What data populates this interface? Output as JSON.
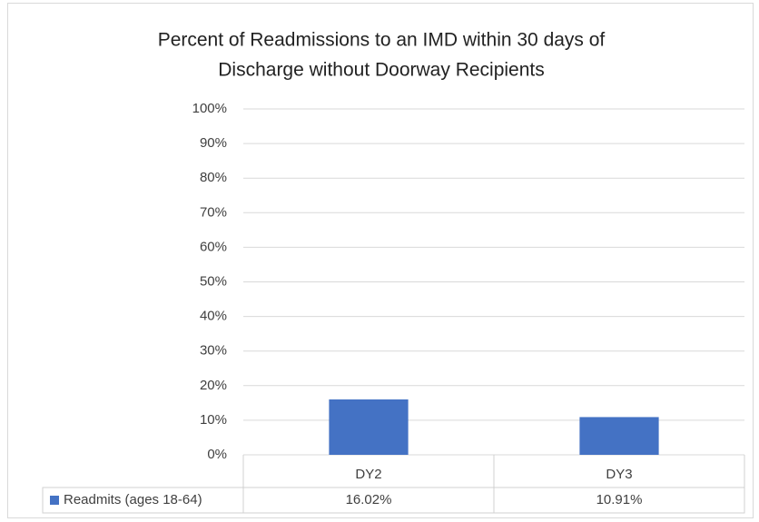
{
  "chart_data": {
    "type": "bar",
    "title": [
      "Percent of Readmissions to an IMD within 30 days of",
      "Discharge without Doorway Recipients"
    ],
    "categories": [
      "DY2",
      "DY3"
    ],
    "series": [
      {
        "name": "Readmits (ages 18-64)",
        "color": "#4472c4",
        "values": [
          16.02,
          10.91
        ],
        "value_labels": [
          "16.02%",
          "10.91%"
        ]
      }
    ],
    "ylim": [
      0,
      100
    ],
    "yticks": [
      {
        "value": 0,
        "label": "0%"
      },
      {
        "value": 10,
        "label": "10%"
      },
      {
        "value": 20,
        "label": "20%"
      },
      {
        "value": 30,
        "label": "30%"
      },
      {
        "value": 40,
        "label": "40%"
      },
      {
        "value": 50,
        "label": "50%"
      },
      {
        "value": 60,
        "label": "60%"
      },
      {
        "value": 70,
        "label": "70%"
      },
      {
        "value": 80,
        "label": "80%"
      },
      {
        "value": 90,
        "label": "90%"
      },
      {
        "value": 100,
        "label": "100%"
      }
    ],
    "grid": true,
    "data_table": true
  }
}
